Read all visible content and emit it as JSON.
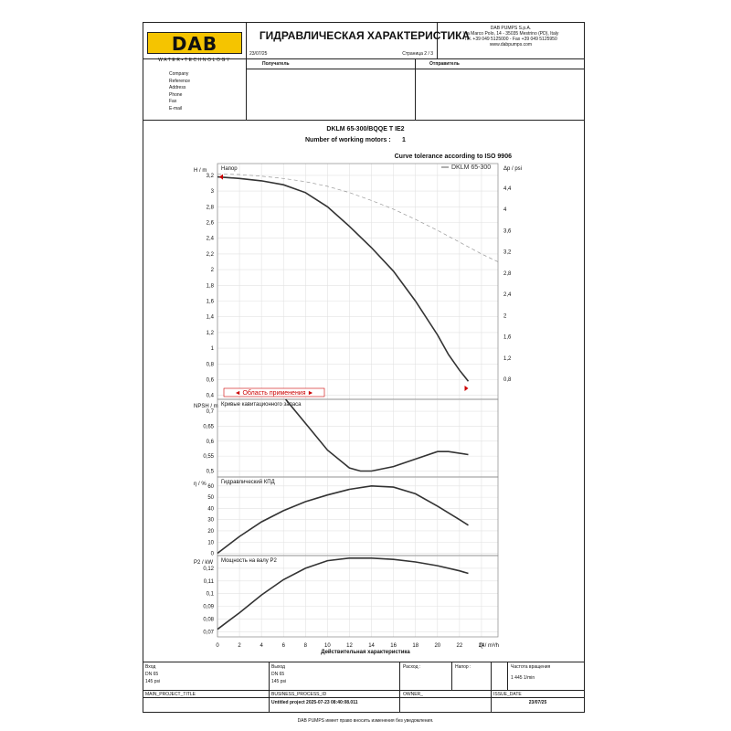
{
  "header": {
    "logo": "DAB",
    "logo_sub": "WATER•TECHNOLOGY",
    "title": "ГИДРАВЛИЧЕСКАЯ ХАРАКТЕРИСТИКА",
    "date": "23/07/25",
    "page": "Страница 2 / 3",
    "company_lines": [
      "DAB PUMPS S.p.A.",
      "Via Marco Polo, 14 - 35035 Mestrino (PD), Italy",
      "Tel. +39 049 5125000 - Fax +39 049 5125950",
      "www.dabpumps.com"
    ],
    "recipient_label": "Получатель",
    "sender_label": "Отправитель",
    "fields": [
      "Company",
      "Reference",
      "Address",
      "Phone",
      "Fax",
      "E-mail"
    ]
  },
  "product": {
    "model": "DKLM 65-300/BQQE T IE2",
    "motors_label": "Number of working motors :",
    "motors_value": "1",
    "tolerance": "Curve tolerance according to ISO 9906"
  },
  "chart_data": {
    "type": "line",
    "xlabel": "Q / m³/h",
    "x_caption": "Действительная характеристика",
    "x_ticks": [
      0,
      2,
      4,
      6,
      8,
      10,
      12,
      14,
      16,
      18,
      20,
      22,
      24
    ],
    "xlim": [
      0,
      25.5
    ],
    "panels": [
      {
        "name": "Напор",
        "ylabel": "H / m",
        "y2label": "Δp / psi",
        "ylim": [
          0.35,
          3.35
        ],
        "y_ticks": [
          0.4,
          0.6,
          0.8,
          1,
          1.2,
          1.4,
          1.6,
          1.8,
          2,
          2.2,
          2.4,
          2.6,
          2.8,
          3,
          3.2
        ],
        "y2_ticks": [
          "0,8",
          "1,2",
          "1,6",
          "2",
          "2,4",
          "2,8",
          "3,2",
          "3,6",
          "4",
          "4,4"
        ],
        "legend": "DKLM 65-300",
        "range_label": "◄ Область применения ►",
        "series": [
          {
            "name": "DKLM 65-300",
            "x": [
              0,
              2,
              4,
              6,
              8,
              10,
              12,
              14,
              16,
              18,
              20,
              21,
              22,
              22.8
            ],
            "y": [
              3.18,
              3.16,
              3.13,
              3.08,
              2.98,
              2.8,
              2.55,
              2.28,
              1.98,
              1.6,
              1.17,
              0.92,
              0.72,
              0.58
            ]
          },
          {
            "name": "",
            "dashed": true,
            "x": [
              0,
              2,
              4,
              6,
              8,
              10,
              12,
              14,
              16,
              18,
              20,
              22,
              24,
              25.5
            ],
            "y": [
              3.22,
              3.21,
              3.19,
              3.16,
              3.12,
              3.06,
              2.98,
              2.88,
              2.77,
              2.64,
              2.5,
              2.35,
              2.2,
              2.1
            ]
          }
        ]
      },
      {
        "name": "Кривые кавитационного запаса",
        "ylabel": "NPSH / m",
        "ylim": [
          0.48,
          0.74
        ],
        "y_ticks": [
          0.5,
          0.55,
          0.6,
          0.65,
          0.7
        ],
        "series": [
          {
            "name": "",
            "x": [
              6.2,
              8,
              10,
              12,
              13,
              14,
              16,
              18,
              20,
              21,
              22.8
            ],
            "y": [
              0.74,
              0.66,
              0.57,
              0.51,
              0.5,
              0.5,
              0.515,
              0.54,
              0.565,
              0.565,
              0.555
            ]
          }
        ]
      },
      {
        "name": "Гидравлический КПД",
        "ylabel": "η / %",
        "ylim": [
          -2,
          68
        ],
        "y_ticks": [
          0,
          10,
          20,
          30,
          40,
          50,
          60
        ],
        "series": [
          {
            "name": "",
            "x": [
              0,
              2,
              4,
              6,
              8,
              10,
              12,
              14,
              16,
              18,
              20,
              22,
              22.8
            ],
            "y": [
              0,
              15,
              28,
              38,
              46,
              52,
              57,
              60,
              59,
              53,
              42,
              30,
              25
            ]
          }
        ]
      },
      {
        "name": "Мощность на валу P2",
        "ylabel": "P2 / kW",
        "ylim": [
          0.066,
          0.13
        ],
        "y_ticks": [
          0.07,
          0.08,
          0.09,
          0.1,
          0.11,
          0.12
        ],
        "series": [
          {
            "name": "",
            "x": [
              0,
              2,
              4,
              6,
              8,
              10,
              12,
              14,
              16,
              18,
              20,
              22,
              22.8
            ],
            "y": [
              0.072,
              0.085,
              0.099,
              0.111,
              0.12,
              0.126,
              0.128,
              0.128,
              0.127,
              0.125,
              0.122,
              0.118,
              0.116
            ]
          }
        ]
      }
    ]
  },
  "footer": {
    "row1": [
      {
        "label": "Вход",
        "lines": [
          "DN 65",
          "145 psi"
        ]
      },
      {
        "label": "Выход",
        "lines": [
          "DN 65",
          "145 psi"
        ]
      },
      {
        "label": "Расход :",
        "lines": []
      },
      {
        "label": "Напор :",
        "lines": []
      },
      {
        "label": "Частота вращения",
        "lines": [
          "1 445 1/min"
        ]
      }
    ],
    "row2": [
      {
        "label": "MAIN_PROJECT_TITLE",
        "value": ""
      },
      {
        "label": "BUSINESS_PROCESS_ID",
        "value": "Untitled project 2025-07-23 08:40:08.011"
      },
      {
        "label": "OWNER_",
        "value": ""
      },
      {
        "label": "ISSUE_DATE",
        "value": "23/07/25"
      }
    ],
    "disclaimer": "DAB PUMPS имеет право вносить изменения без уведомления."
  }
}
